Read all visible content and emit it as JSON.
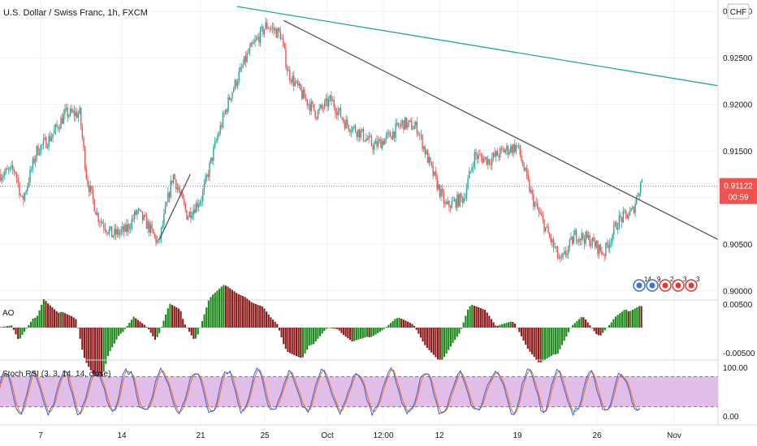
{
  "header": {
    "symbol_title": "U.S. Dollar / Swiss Franc, 1h, FXCM",
    "currency_badge": "CHF"
  },
  "colors": {
    "bull": "#26a69a",
    "bear": "#ef5350",
    "ao_up": "#1b8a1b",
    "ao_down": "#8b1a1a",
    "rsi_k": "#2962ff",
    "rsi_d": "#ff6d00",
    "rsi_band": "#e1bee7",
    "trend_teal": "#26a69a",
    "trend_dark": "#555555",
    "price_tag": "#ef5350",
    "grid": "#f0f3fa"
  },
  "price_axis": {
    "ticks": [
      "0.93000",
      "0.92500",
      "0.92000",
      "0.91500",
      "0.91000",
      "0.90500",
      "0.90000"
    ],
    "current_price": "0.91122",
    "countdown": "00:59"
  },
  "time_axis": {
    "labels": [
      "7",
      "14",
      "21",
      "25",
      "Oct",
      "12:00",
      "12",
      "19",
      "26",
      "Nov"
    ]
  },
  "event_badges": [
    "14",
    "9",
    "2",
    "3",
    "3"
  ],
  "ao_panel": {
    "label": "AO",
    "ticks": [
      "0.00500",
      "-0.00500"
    ]
  },
  "rsi_panel": {
    "label": "Stoch RSI (3, 3, 14, 14, close)",
    "ticks": [
      "100.00",
      "0.00"
    ]
  },
  "chart_data": {
    "type": "candlestick",
    "title": "U.S. Dollar / Swiss Franc, 1h, FXCM",
    "ylim": [
      0.8997,
      0.9305
    ],
    "x_labels": [
      "7",
      "14",
      "21",
      "25",
      "Oct",
      "12:00",
      "12",
      "19",
      "26",
      "Nov"
    ],
    "price_path": [
      [
        0,
        0.9125
      ],
      [
        0.02,
        0.913
      ],
      [
        0.03,
        0.9095
      ],
      [
        0.05,
        0.915
      ],
      [
        0.07,
        0.9165
      ],
      [
        0.09,
        0.919
      ],
      [
        0.11,
        0.919
      ],
      [
        0.12,
        0.912
      ],
      [
        0.135,
        0.908
      ],
      [
        0.155,
        0.906
      ],
      [
        0.175,
        0.9065
      ],
      [
        0.19,
        0.9085
      ],
      [
        0.205,
        0.907
      ],
      [
        0.22,
        0.905
      ],
      [
        0.24,
        0.9125
      ],
      [
        0.26,
        0.908
      ],
      [
        0.28,
        0.91
      ],
      [
        0.3,
        0.916
      ],
      [
        0.32,
        0.921
      ],
      [
        0.345,
        0.9255
      ],
      [
        0.37,
        0.9285
      ],
      [
        0.39,
        0.9275
      ],
      [
        0.4,
        0.9235
      ],
      [
        0.42,
        0.921
      ],
      [
        0.44,
        0.919
      ],
      [
        0.46,
        0.9205
      ],
      [
        0.48,
        0.918
      ],
      [
        0.5,
        0.917
      ],
      [
        0.52,
        0.9155
      ],
      [
        0.54,
        0.9165
      ],
      [
        0.56,
        0.918
      ],
      [
        0.58,
        0.9175
      ],
      [
        0.6,
        0.913
      ],
      [
        0.62,
        0.909
      ],
      [
        0.645,
        0.91
      ],
      [
        0.66,
        0.9145
      ],
      [
        0.68,
        0.914
      ],
      [
        0.7,
        0.915
      ],
      [
        0.72,
        0.9155
      ],
      [
        0.74,
        0.91
      ],
      [
        0.76,
        0.9065
      ],
      [
        0.78,
        0.903
      ],
      [
        0.8,
        0.906
      ],
      [
        0.82,
        0.9055
      ],
      [
        0.84,
        0.904
      ],
      [
        0.86,
        0.9075
      ],
      [
        0.88,
        0.9085
      ],
      [
        0.895,
        0.9125
      ]
    ],
    "trendlines": [
      {
        "color": "teal",
        "from": [
          0.9305,
          0.33
        ],
        "to": [
          0.922,
          1.0
        ]
      },
      {
        "color": "dark",
        "from": [
          0.929,
          0.395
        ],
        "to": [
          0.9055,
          1.0
        ]
      },
      {
        "color": "dark",
        "from": [
          0.9055,
          0.222
        ],
        "to": [
          0.9125,
          0.265
        ]
      }
    ]
  }
}
